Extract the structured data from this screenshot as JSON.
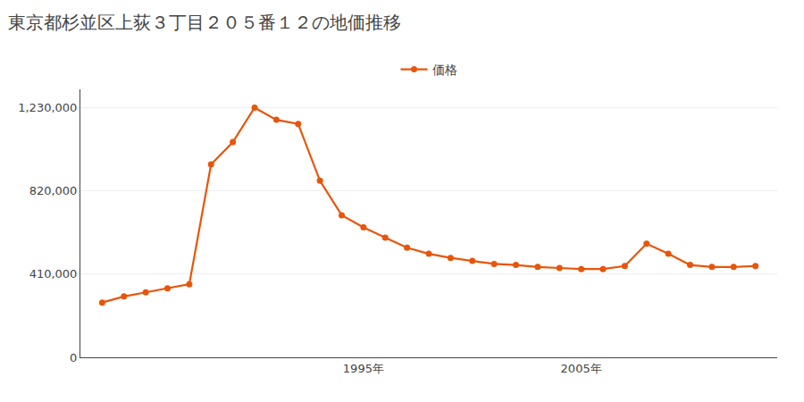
{
  "chart_data": {
    "type": "line",
    "title": "東京都杉並区上荻３丁目２０５番１２の地価推移",
    "x": [
      1983,
      1984,
      1985,
      1986,
      1987,
      1988,
      1989,
      1990,
      1991,
      1992,
      1993,
      1994,
      1995,
      1996,
      1997,
      1998,
      1999,
      2000,
      2001,
      2002,
      2003,
      2004,
      2005,
      2006,
      2007,
      2008,
      2009,
      2010,
      2011,
      2012,
      2013
    ],
    "series": [
      {
        "name": "価格",
        "color": "#e8550a",
        "marker": "circle",
        "line_style": "solid",
        "values": [
          270000,
          300000,
          320000,
          340000,
          360000,
          950000,
          1060000,
          1230000,
          1170000,
          1150000,
          870000,
          700000,
          640000,
          590000,
          540000,
          510000,
          490000,
          475000,
          460000,
          455000,
          445000,
          440000,
          435000,
          435000,
          450000,
          560000,
          510000,
          455000,
          445000,
          445000,
          450000
        ]
      }
    ],
    "xlim": [
      1982,
      2014
    ],
    "xticks": [
      {
        "value": 1995,
        "label": "1995年"
      },
      {
        "value": 2005,
        "label": "2005年"
      }
    ],
    "ylim": [
      0,
      1320000
    ],
    "yticks": [
      0,
      {
        "value": 410000,
        "label": "410,000"
      },
      {
        "value": 820000,
        "label": "820,000"
      },
      {
        "value": 1230000,
        "label": "1,230,000"
      }
    ],
    "grid": "y",
    "legend": "top"
  }
}
